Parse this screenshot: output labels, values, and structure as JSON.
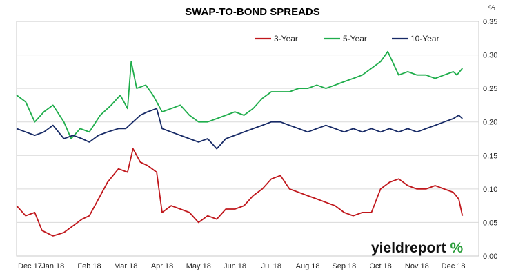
{
  "chart_data": {
    "type": "line",
    "title": "SWAP-TO-BOND SPREADS",
    "y_unit": "%",
    "ylim": [
      0,
      0.35
    ],
    "y_ticks": [
      "0.00",
      "0.05",
      "0.10",
      "0.15",
      "0.20",
      "0.25",
      "0.30",
      "0.35"
    ],
    "x_tick_labels": [
      "Dec 17",
      "Jan 18",
      "Feb 18",
      "Mar 18",
      "Apr 18",
      "May 18",
      "Jun 18",
      "Jul 18",
      "Aug 18",
      "Sep 18",
      "Oct 18",
      "Nov 18",
      "Dec 18"
    ],
    "grid": true,
    "legend_position": "top-right",
    "brand": {
      "main": "yieldreport",
      "symbol": "%",
      "main_color": "#111111",
      "symbol_color": "#2a9d3a"
    },
    "series": [
      {
        "name": "3-Year",
        "color": "#c0171c",
        "values": [
          [
            0,
            0.075
          ],
          [
            0.25,
            0.06
          ],
          [
            0.5,
            0.065
          ],
          [
            0.7,
            0.038
          ],
          [
            1.0,
            0.03
          ],
          [
            1.3,
            0.035
          ],
          [
            1.55,
            0.045
          ],
          [
            1.8,
            0.055
          ],
          [
            2.0,
            0.06
          ],
          [
            2.2,
            0.08
          ],
          [
            2.5,
            0.11
          ],
          [
            2.8,
            0.13
          ],
          [
            3.05,
            0.125
          ],
          [
            3.2,
            0.16
          ],
          [
            3.4,
            0.14
          ],
          [
            3.6,
            0.135
          ],
          [
            3.85,
            0.125
          ],
          [
            4.0,
            0.065
          ],
          [
            4.25,
            0.075
          ],
          [
            4.5,
            0.07
          ],
          [
            4.75,
            0.065
          ],
          [
            5.0,
            0.05
          ],
          [
            5.25,
            0.06
          ],
          [
            5.5,
            0.055
          ],
          [
            5.75,
            0.07
          ],
          [
            6.0,
            0.07
          ],
          [
            6.25,
            0.075
          ],
          [
            6.5,
            0.09
          ],
          [
            6.75,
            0.1
          ],
          [
            7.0,
            0.115
          ],
          [
            7.25,
            0.12
          ],
          [
            7.5,
            0.1
          ],
          [
            7.75,
            0.095
          ],
          [
            8.0,
            0.09
          ],
          [
            8.25,
            0.085
          ],
          [
            8.5,
            0.08
          ],
          [
            8.75,
            0.075
          ],
          [
            9.0,
            0.065
          ],
          [
            9.25,
            0.06
          ],
          [
            9.5,
            0.065
          ],
          [
            9.75,
            0.065
          ],
          [
            10.0,
            0.1
          ],
          [
            10.25,
            0.11
          ],
          [
            10.5,
            0.115
          ],
          [
            10.75,
            0.105
          ],
          [
            11.0,
            0.1
          ],
          [
            11.25,
            0.1
          ],
          [
            11.5,
            0.105
          ],
          [
            11.75,
            0.1
          ],
          [
            12.0,
            0.095
          ],
          [
            12.15,
            0.085
          ],
          [
            12.25,
            0.06
          ]
        ]
      },
      {
        "name": "5-Year",
        "color": "#1fad4b",
        "values": [
          [
            0,
            0.24
          ],
          [
            0.25,
            0.23
          ],
          [
            0.5,
            0.2
          ],
          [
            0.75,
            0.215
          ],
          [
            1.0,
            0.225
          ],
          [
            1.3,
            0.2
          ],
          [
            1.5,
            0.175
          ],
          [
            1.75,
            0.19
          ],
          [
            2.0,
            0.185
          ],
          [
            2.3,
            0.21
          ],
          [
            2.6,
            0.225
          ],
          [
            2.85,
            0.24
          ],
          [
            3.05,
            0.22
          ],
          [
            3.15,
            0.29
          ],
          [
            3.3,
            0.25
          ],
          [
            3.55,
            0.255
          ],
          [
            3.75,
            0.24
          ],
          [
            4.0,
            0.215
          ],
          [
            4.25,
            0.22
          ],
          [
            4.5,
            0.225
          ],
          [
            4.75,
            0.21
          ],
          [
            5.0,
            0.2
          ],
          [
            5.25,
            0.2
          ],
          [
            5.5,
            0.205
          ],
          [
            5.75,
            0.21
          ],
          [
            6.0,
            0.215
          ],
          [
            6.25,
            0.21
          ],
          [
            6.5,
            0.22
          ],
          [
            6.75,
            0.235
          ],
          [
            7.0,
            0.245
          ],
          [
            7.25,
            0.245
          ],
          [
            7.5,
            0.245
          ],
          [
            7.75,
            0.25
          ],
          [
            8.0,
            0.25
          ],
          [
            8.25,
            0.255
          ],
          [
            8.5,
            0.25
          ],
          [
            8.75,
            0.255
          ],
          [
            9.0,
            0.26
          ],
          [
            9.25,
            0.265
          ],
          [
            9.5,
            0.27
          ],
          [
            9.75,
            0.28
          ],
          [
            10.0,
            0.29
          ],
          [
            10.2,
            0.305
          ],
          [
            10.5,
            0.27
          ],
          [
            10.75,
            0.275
          ],
          [
            11.0,
            0.27
          ],
          [
            11.25,
            0.27
          ],
          [
            11.5,
            0.265
          ],
          [
            11.75,
            0.27
          ],
          [
            12.0,
            0.275
          ],
          [
            12.1,
            0.27
          ],
          [
            12.25,
            0.28
          ]
        ]
      },
      {
        "name": "10-Year",
        "color": "#172a66",
        "values": [
          [
            0,
            0.19
          ],
          [
            0.25,
            0.185
          ],
          [
            0.5,
            0.18
          ],
          [
            0.75,
            0.185
          ],
          [
            1.0,
            0.195
          ],
          [
            1.3,
            0.175
          ],
          [
            1.55,
            0.18
          ],
          [
            1.8,
            0.175
          ],
          [
            2.0,
            0.17
          ],
          [
            2.25,
            0.18
          ],
          [
            2.5,
            0.185
          ],
          [
            2.8,
            0.19
          ],
          [
            3.0,
            0.19
          ],
          [
            3.2,
            0.2
          ],
          [
            3.4,
            0.21
          ],
          [
            3.6,
            0.215
          ],
          [
            3.85,
            0.22
          ],
          [
            4.0,
            0.19
          ],
          [
            4.25,
            0.185
          ],
          [
            4.5,
            0.18
          ],
          [
            4.75,
            0.175
          ],
          [
            5.0,
            0.17
          ],
          [
            5.25,
            0.175
          ],
          [
            5.5,
            0.16
          ],
          [
            5.75,
            0.175
          ],
          [
            6.0,
            0.18
          ],
          [
            6.25,
            0.185
          ],
          [
            6.5,
            0.19
          ],
          [
            6.75,
            0.195
          ],
          [
            7.0,
            0.2
          ],
          [
            7.25,
            0.2
          ],
          [
            7.5,
            0.195
          ],
          [
            7.75,
            0.19
          ],
          [
            8.0,
            0.185
          ],
          [
            8.25,
            0.19
          ],
          [
            8.5,
            0.195
          ],
          [
            8.75,
            0.19
          ],
          [
            9.0,
            0.185
          ],
          [
            9.25,
            0.19
          ],
          [
            9.5,
            0.185
          ],
          [
            9.75,
            0.19
          ],
          [
            10.0,
            0.185
          ],
          [
            10.25,
            0.19
          ],
          [
            10.5,
            0.185
          ],
          [
            10.75,
            0.19
          ],
          [
            11.0,
            0.185
          ],
          [
            11.25,
            0.19
          ],
          [
            11.5,
            0.195
          ],
          [
            11.75,
            0.2
          ],
          [
            12.0,
            0.205
          ],
          [
            12.15,
            0.21
          ],
          [
            12.25,
            0.205
          ]
        ]
      }
    ]
  }
}
